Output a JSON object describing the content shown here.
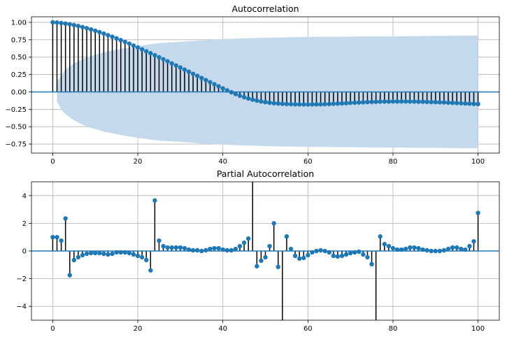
{
  "colors": {
    "marker": "#1f77b4",
    "band": "#c5d9ec",
    "zero_line": "#1f77b4"
  },
  "chart_data": [
    {
      "type": "stem",
      "title": "Autocorrelation",
      "xlim": [
        -5,
        105
      ],
      "ylim": [
        -0.88,
        1.08
      ],
      "xticks": [
        0,
        20,
        40,
        60,
        80,
        100
      ],
      "xtick_labels": [
        "0",
        "20",
        "40",
        "60",
        "80",
        "100"
      ],
      "yticks": [
        -0.75,
        -0.5,
        -0.25,
        0,
        0.25,
        0.5,
        0.75,
        1
      ],
      "ytick_labels": [
        "−0.75",
        "−0.50",
        "−0.25",
        "0.00",
        "0.25",
        "0.50",
        "0.75",
        "1.00"
      ],
      "grid": true,
      "confidence_band": {
        "x": [
          1,
          2,
          3,
          5,
          8,
          12,
          16,
          20,
          25,
          30,
          40,
          50,
          60,
          70,
          80,
          90,
          100
        ],
        "upper": [
          0.14,
          0.25,
          0.32,
          0.41,
          0.5,
          0.57,
          0.62,
          0.66,
          0.7,
          0.72,
          0.76,
          0.78,
          0.79,
          0.795,
          0.8,
          0.805,
          0.81
        ],
        "lower": [
          -0.14,
          -0.25,
          -0.32,
          -0.41,
          -0.5,
          -0.57,
          -0.62,
          -0.66,
          -0.7,
          -0.72,
          -0.76,
          -0.78,
          -0.79,
          -0.795,
          -0.8,
          -0.805,
          -0.81
        ]
      },
      "values": [
        1.0,
        0.997,
        0.99,
        0.982,
        0.972,
        0.96,
        0.947,
        0.932,
        0.916,
        0.898,
        0.879,
        0.859,
        0.838,
        0.816,
        0.793,
        0.769,
        0.744,
        0.719,
        0.693,
        0.666,
        0.639,
        0.612,
        0.584,
        0.556,
        0.527,
        0.498,
        0.469,
        0.44,
        0.41,
        0.38,
        0.35,
        0.32,
        0.29,
        0.26,
        0.23,
        0.2,
        0.17,
        0.14,
        0.11,
        0.08,
        0.05,
        0.022,
        -0.005,
        -0.03,
        -0.055,
        -0.076,
        -0.095,
        -0.111,
        -0.125,
        -0.137,
        -0.147,
        -0.155,
        -0.162,
        -0.167,
        -0.171,
        -0.174,
        -0.176,
        -0.178,
        -0.179,
        -0.18,
        -0.18,
        -0.18,
        -0.179,
        -0.178,
        -0.176,
        -0.174,
        -0.171,
        -0.168,
        -0.165,
        -0.162,
        -0.158,
        -0.155,
        -0.152,
        -0.149,
        -0.146,
        -0.144,
        -0.142,
        -0.14,
        -0.139,
        -0.138,
        -0.137,
        -0.137,
        -0.137,
        -0.137,
        -0.138,
        -0.139,
        -0.14,
        -0.141,
        -0.143,
        -0.145,
        -0.147,
        -0.149,
        -0.151,
        -0.154,
        -0.157,
        -0.16,
        -0.163,
        -0.166,
        -0.169,
        -0.172,
        -0.175
      ]
    },
    {
      "type": "stem",
      "title": "Partial Autocorrelation",
      "xlim": [
        -5,
        105
      ],
      "ylim": [
        -5,
        5
      ],
      "xticks": [
        0,
        20,
        40,
        60,
        80,
        100
      ],
      "xtick_labels": [
        "0",
        "20",
        "40",
        "60",
        "80",
        "100"
      ],
      "yticks": [
        -4,
        -2,
        0,
        2,
        4
      ],
      "ytick_labels": [
        "−4",
        "−2",
        "0",
        "2",
        "4"
      ],
      "grid": true,
      "values": [
        1.0,
        1.0,
        0.75,
        2.35,
        -1.75,
        -0.65,
        -0.45,
        -0.3,
        -0.2,
        -0.15,
        -0.15,
        -0.15,
        -0.2,
        -0.25,
        -0.2,
        -0.1,
        -0.1,
        -0.1,
        -0.15,
        -0.25,
        -0.35,
        -0.45,
        -0.65,
        -1.4,
        3.65,
        0.75,
        0.35,
        0.25,
        0.25,
        0.25,
        0.25,
        0.2,
        0.1,
        0.05,
        0.05,
        0.0,
        0.05,
        0.15,
        0.2,
        0.2,
        0.1,
        0.05,
        0.05,
        0.15,
        0.35,
        0.6,
        0.9,
        5.2,
        -1.1,
        -0.7,
        -0.45,
        0.35,
        2.0,
        -1.15,
        -6.0,
        1.05,
        0.15,
        -0.35,
        -0.55,
        -0.5,
        -0.3,
        -0.1,
        0.0,
        0.05,
        0.0,
        -0.1,
        -0.35,
        -0.4,
        -0.35,
        -0.25,
        -0.15,
        -0.1,
        -0.05,
        -0.25,
        -0.45,
        -0.95,
        -6.0,
        1.05,
        0.5,
        0.35,
        0.2,
        0.1,
        0.1,
        0.15,
        0.25,
        0.25,
        0.2,
        0.1,
        0.05,
        0.0,
        0.0,
        0.0,
        0.05,
        0.15,
        0.25,
        0.25,
        0.15,
        0.1,
        0.35,
        0.7,
        2.75
      ]
    }
  ]
}
